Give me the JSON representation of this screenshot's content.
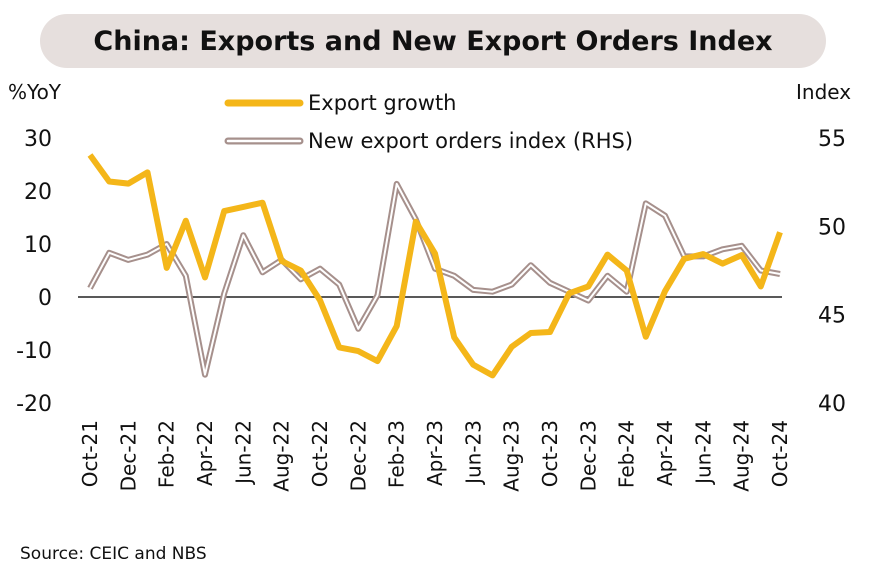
{
  "title": "China: Exports and New Export Orders Index",
  "left_axis_label": "%YoY",
  "right_axis_label": "Index",
  "source": "Source: CEIC and NBS",
  "colors": {
    "export_growth": "#f4b619",
    "new_export_orders": "#a6908c",
    "zero_line": "#222222"
  },
  "chart_data": {
    "type": "line",
    "title": "China: Exports and New Export Orders Index",
    "x": [
      "Oct-21",
      "Nov-21",
      "Dec-21",
      "Jan-22",
      "Feb-22",
      "Mar-22",
      "Apr-22",
      "May-22",
      "Jun-22",
      "Jul-22",
      "Aug-22",
      "Sep-22",
      "Oct-22",
      "Nov-22",
      "Dec-22",
      "Jan-23",
      "Feb-23",
      "Mar-23",
      "Apr-23",
      "May-23",
      "Jun-23",
      "Jul-23",
      "Aug-23",
      "Sep-23",
      "Oct-23",
      "Nov-23",
      "Dec-23",
      "Jan-24",
      "Feb-24",
      "Mar-24",
      "Apr-24",
      "May-24",
      "Jun-24",
      "Jul-24",
      "Aug-24",
      "Sep-24",
      "Oct-24"
    ],
    "x_tick_labels": [
      "Oct-21",
      "Dec-21",
      "Feb-22",
      "Apr-22",
      "Jun-22",
      "Aug-22",
      "Oct-22",
      "Dec-22",
      "Feb-23",
      "Apr-23",
      "Jun-23",
      "Aug-23",
      "Oct-23",
      "Dec-23",
      "Feb-24",
      "Apr-24",
      "Jun-24",
      "Aug-24",
      "Oct-24"
    ],
    "y_left": {
      "label": "%YoY",
      "lim": [
        -20,
        30
      ],
      "ticks": [
        30,
        20,
        10,
        0,
        -10,
        -20
      ]
    },
    "y_right": {
      "label": "Index",
      "lim": [
        40,
        55
      ],
      "ticks": [
        55,
        50,
        45,
        40
      ]
    },
    "legend": "top-center",
    "series": [
      {
        "name": "Export growth",
        "axis": "left",
        "values": [
          26.8,
          21.8,
          21.4,
          23.5,
          5.5,
          14.4,
          3.7,
          16.2,
          17.0,
          17.8,
          6.8,
          5.0,
          -0.6,
          -9.5,
          -10.2,
          -12.1,
          -5.5,
          14.2,
          8.2,
          -7.6,
          -12.8,
          -14.8,
          -9.4,
          -6.8,
          -6.6,
          0.7,
          2.0,
          8.0,
          5.0,
          -7.5,
          1.1,
          7.2,
          8.1,
          6.3,
          7.9,
          2.0,
          12.2
        ]
      },
      {
        "name": "New export orders index (RHS)",
        "axis": "right",
        "values": [
          46.5,
          48.5,
          48.1,
          48.4,
          49.0,
          47.2,
          41.6,
          46.2,
          49.5,
          47.4,
          48.1,
          47.0,
          47.6,
          46.7,
          44.2,
          46.1,
          52.4,
          50.4,
          47.6,
          47.2,
          46.4,
          46.3,
          46.7,
          47.8,
          46.8,
          46.3,
          45.8,
          47.2,
          46.3,
          51.3,
          50.6,
          48.3,
          48.3,
          48.7,
          48.9,
          47.5,
          47.3
        ]
      }
    ]
  }
}
